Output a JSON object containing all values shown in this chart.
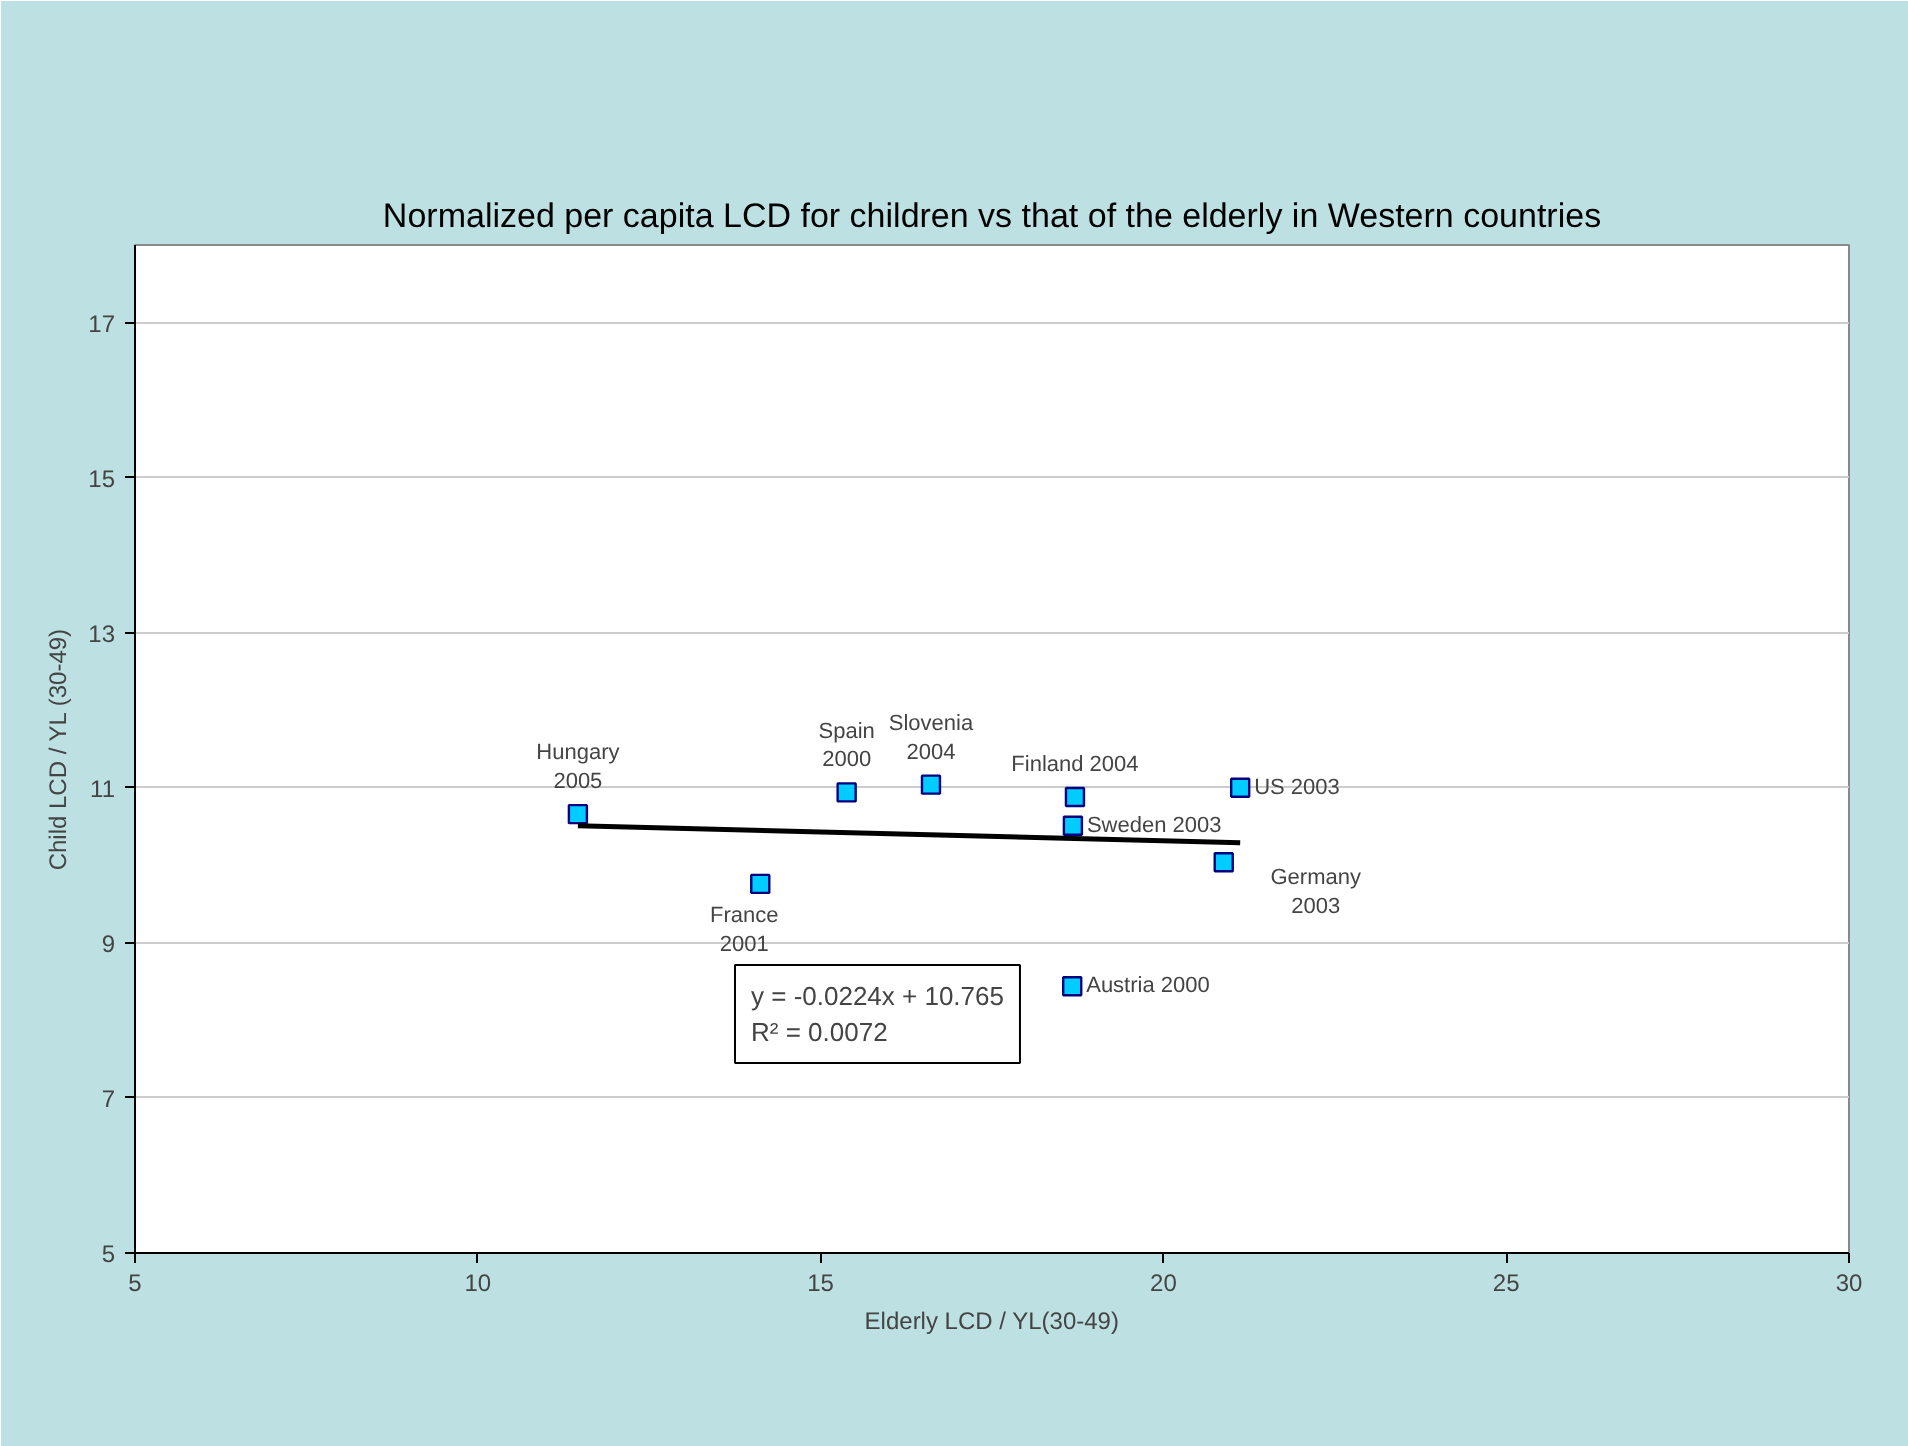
{
  "chart_data": {
    "type": "scatter",
    "title": "Normalized per capita LCD for children vs that of the elderly in Western countries",
    "xlabel": "Elderly LCD / YL(30-49)",
    "ylabel": "Child LCD / YL (30-49)",
    "series": [
      {
        "marker": "square",
        "color": "#00ccff",
        "x": [
          11.46,
          15.38,
          16.61,
          18.71,
          18.68,
          21.12,
          20.88,
          14.12,
          18.67
        ],
        "values": [
          10.66,
          10.94,
          11.04,
          10.88,
          10.51,
          11.0,
          10.04,
          9.76,
          8.44
        ]
      },
      {
        "type": "line",
        "color": "#000000",
        "x": [
          11.46,
          21.12
        ],
        "values": [
          10.51,
          10.29
        ]
      }
    ],
    "annotations": [
      {
        "text": "Hungary\n2005",
        "x": 11.46,
        "y": 10.66
      },
      {
        "text": "Spain\n2000",
        "x": 15.38,
        "y": 10.94
      },
      {
        "text": "Slovenia\n2004",
        "x": 16.61,
        "y": 11.04
      },
      {
        "text": "Finland 2004",
        "x": 18.71,
        "y": 10.88
      },
      {
        "text": "Sweden 2003",
        "x": 18.68,
        "y": 10.51
      },
      {
        "text": "US 2003",
        "x": 21.12,
        "y": 11.0
      },
      {
        "text": "Germany\n2003",
        "x": 20.88,
        "y": 10.04
      },
      {
        "text": "France\n2001",
        "x": 14.12,
        "y": 9.76
      },
      {
        "text": "Austria 2000",
        "x": 18.67,
        "y": 8.44
      },
      "y = -0.0224x + 10.765\nR² = 0.0072"
    ],
    "xlim": [
      5,
      30
    ],
    "ylim": [
      5,
      18
    ],
    "xticks": [
      5,
      10,
      15,
      20,
      25,
      30
    ],
    "yticks": [
      5,
      7,
      9,
      11,
      13,
      15,
      17
    ],
    "grid": "y"
  }
}
